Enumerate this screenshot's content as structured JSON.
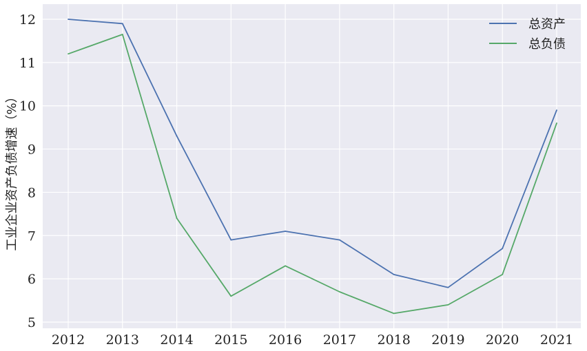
{
  "chart_data": {
    "type": "line",
    "xlabel": "",
    "ylabel": "工业企业资产负债增速（%）",
    "x": [
      "2012",
      "2013",
      "2014",
      "2015",
      "2016",
      "2017",
      "2018",
      "2019",
      "2020",
      "2021"
    ],
    "ylim": [
      4.85,
      12.35
    ],
    "yticks": [
      5,
      6,
      7,
      8,
      9,
      10,
      11,
      12
    ],
    "grid": true,
    "legend_position": "top-right",
    "background": "#EAEAF2",
    "series": [
      {
        "name": "总资产",
        "color": "#4C72B0",
        "values": [
          12.0,
          11.9,
          9.3,
          6.9,
          7.1,
          6.9,
          6.1,
          5.8,
          6.7,
          9.9
        ]
      },
      {
        "name": "总负债",
        "color": "#55A868",
        "values": [
          11.2,
          11.65,
          7.4,
          5.6,
          6.3,
          5.7,
          5.2,
          5.4,
          6.1,
          9.6
        ]
      }
    ]
  }
}
